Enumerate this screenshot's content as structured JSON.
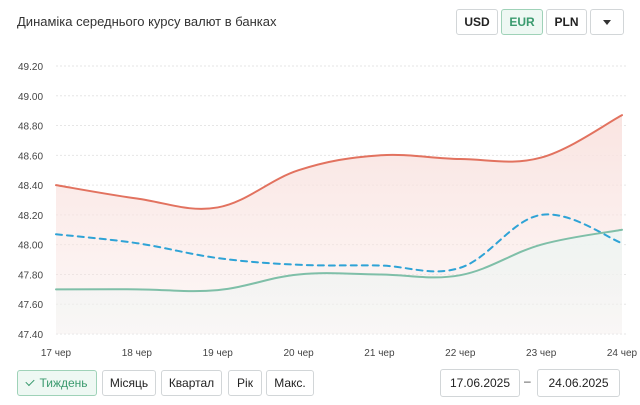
{
  "header": {
    "title": "Динаміка середнього курсу валют в банках"
  },
  "currencies": [
    {
      "label": "USD",
      "active": false
    },
    {
      "label": "EUR",
      "active": true
    },
    {
      "label": "PLN",
      "active": false
    }
  ],
  "dropdown_icon": "chevron-down-icon",
  "periods": [
    {
      "label": "Тиждень",
      "active": true
    },
    {
      "label": "Місяць",
      "active": false
    },
    {
      "label": "Квартал",
      "active": false
    },
    {
      "label": "Рік",
      "active": false
    },
    {
      "label": "Макс.",
      "active": false
    }
  ],
  "date_range": {
    "from": "17.06.2025",
    "separator": "–",
    "to": "24.06.2025"
  },
  "chart_data": {
    "type": "line",
    "title": "",
    "xlabel": "",
    "ylabel": "",
    "categories": [
      "17 чер",
      "18 чер",
      "19 чер",
      "20 чер",
      "21 чер",
      "22 чер",
      "23 чер",
      "24 чер"
    ],
    "ylim": [
      47.4,
      49.2
    ],
    "yticks": [
      "47.40",
      "47.60",
      "47.80",
      "48.00",
      "48.20",
      "48.40",
      "48.60",
      "48.80",
      "49.00",
      "49.20"
    ],
    "grid": true,
    "series": [
      {
        "style": "solid",
        "color": "#e2725f",
        "fill": "#f9e3e0",
        "points": [
          [
            0,
            48.4
          ],
          [
            1,
            48.31
          ],
          [
            2,
            48.25
          ],
          [
            3,
            48.5
          ],
          [
            4,
            48.6
          ],
          [
            5,
            48.575
          ],
          [
            6,
            48.585
          ],
          [
            7,
            48.87
          ]
        ]
      },
      {
        "style": "dashed",
        "color": "#2ea3d6",
        "points": [
          [
            0,
            48.07
          ],
          [
            1,
            48.01
          ],
          [
            2,
            47.91
          ],
          [
            3,
            47.865
          ],
          [
            4,
            47.86
          ],
          [
            5,
            47.845
          ],
          [
            6,
            48.2
          ],
          [
            7,
            48.01
          ]
        ]
      },
      {
        "style": "solid",
        "color": "#7fbfa8",
        "fill": "#eef5f3",
        "points": [
          [
            0,
            47.7
          ],
          [
            1,
            47.7
          ],
          [
            2,
            47.695
          ],
          [
            3,
            47.8
          ],
          [
            4,
            47.8
          ],
          [
            5,
            47.795
          ],
          [
            6,
            48.0
          ],
          [
            7,
            48.1
          ]
        ]
      }
    ]
  }
}
